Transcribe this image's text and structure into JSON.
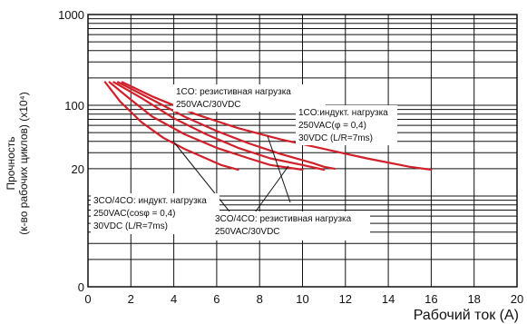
{
  "chart_data": {
    "type": "line",
    "xlabel": "Рабочий ток (A)",
    "ylabel_line1": "Прочность",
    "ylabel_line2": "(к-во рабочих циклов) (x10⁴)",
    "xlim": [
      0,
      20
    ],
    "ylim": [
      1,
      1000
    ],
    "y_scale": "log",
    "grid": true,
    "x_ticks": [
      "0",
      "2",
      "4",
      "6",
      "8",
      "10",
      "12",
      "14",
      "16",
      "18",
      "20"
    ],
    "y_ticks": [
      {
        "value": 1,
        "label": "0"
      },
      {
        "value": 20,
        "label": "20"
      },
      {
        "value": 100,
        "label": "100"
      },
      {
        "value": 1000,
        "label": "1000"
      }
    ],
    "series_color": "#d0202a",
    "series": [
      {
        "x": [
          0.8,
          1.5,
          2.5,
          3.5,
          4.5,
          5.5,
          6.2,
          7.0
        ],
        "y": [
          180,
          110,
          65,
          44,
          33,
          26,
          22,
          19.5
        ]
      },
      {
        "x": [
          1.0,
          2.0,
          3.0,
          4.5,
          6.0,
          7.5,
          8.5,
          10.0
        ],
        "y": [
          180,
          115,
          75,
          48,
          34,
          26,
          22,
          19.5
        ]
      },
      {
        "x": [
          1.2,
          2.5,
          4.0,
          5.5,
          7.0,
          8.5,
          10.0,
          11.0
        ],
        "y": [
          180,
          120,
          72,
          48,
          34,
          26,
          22,
          19.5
        ]
      },
      {
        "x": [
          1.4,
          3.0,
          4.5,
          6.0,
          7.5,
          9.0,
          10.5,
          11.0,
          11.5
        ],
        "y": [
          180,
          115,
          75,
          52,
          38,
          29,
          23,
          21,
          20
        ]
      },
      {
        "x": [
          1.6,
          3.0,
          5.0,
          7.0,
          9.0,
          11.0,
          13.0,
          15.0,
          16.0
        ],
        "y": [
          180,
          125,
          80,
          56,
          42,
          33,
          26,
          21,
          19.5
        ]
      }
    ],
    "annotations": [
      {
        "lines": [
          "1CO: резистивная нагрузка",
          "250VAC/30VDC"
        ]
      },
      {
        "lines": [
          "1CO:индукт. нагрузка",
          "250VAC(φ = 0,4)",
          "30VDC (L/R=7ms)"
        ]
      },
      {
        "lines": [
          "3CO/4CO: индукт. нагрузка",
          "250VAC(cosφ = 0,4)",
          "30VDC (L/R=7ms)"
        ]
      },
      {
        "lines": [
          "3CO/4CO: резистивная нагрузка",
          "250VAC/30VDC"
        ]
      }
    ]
  }
}
